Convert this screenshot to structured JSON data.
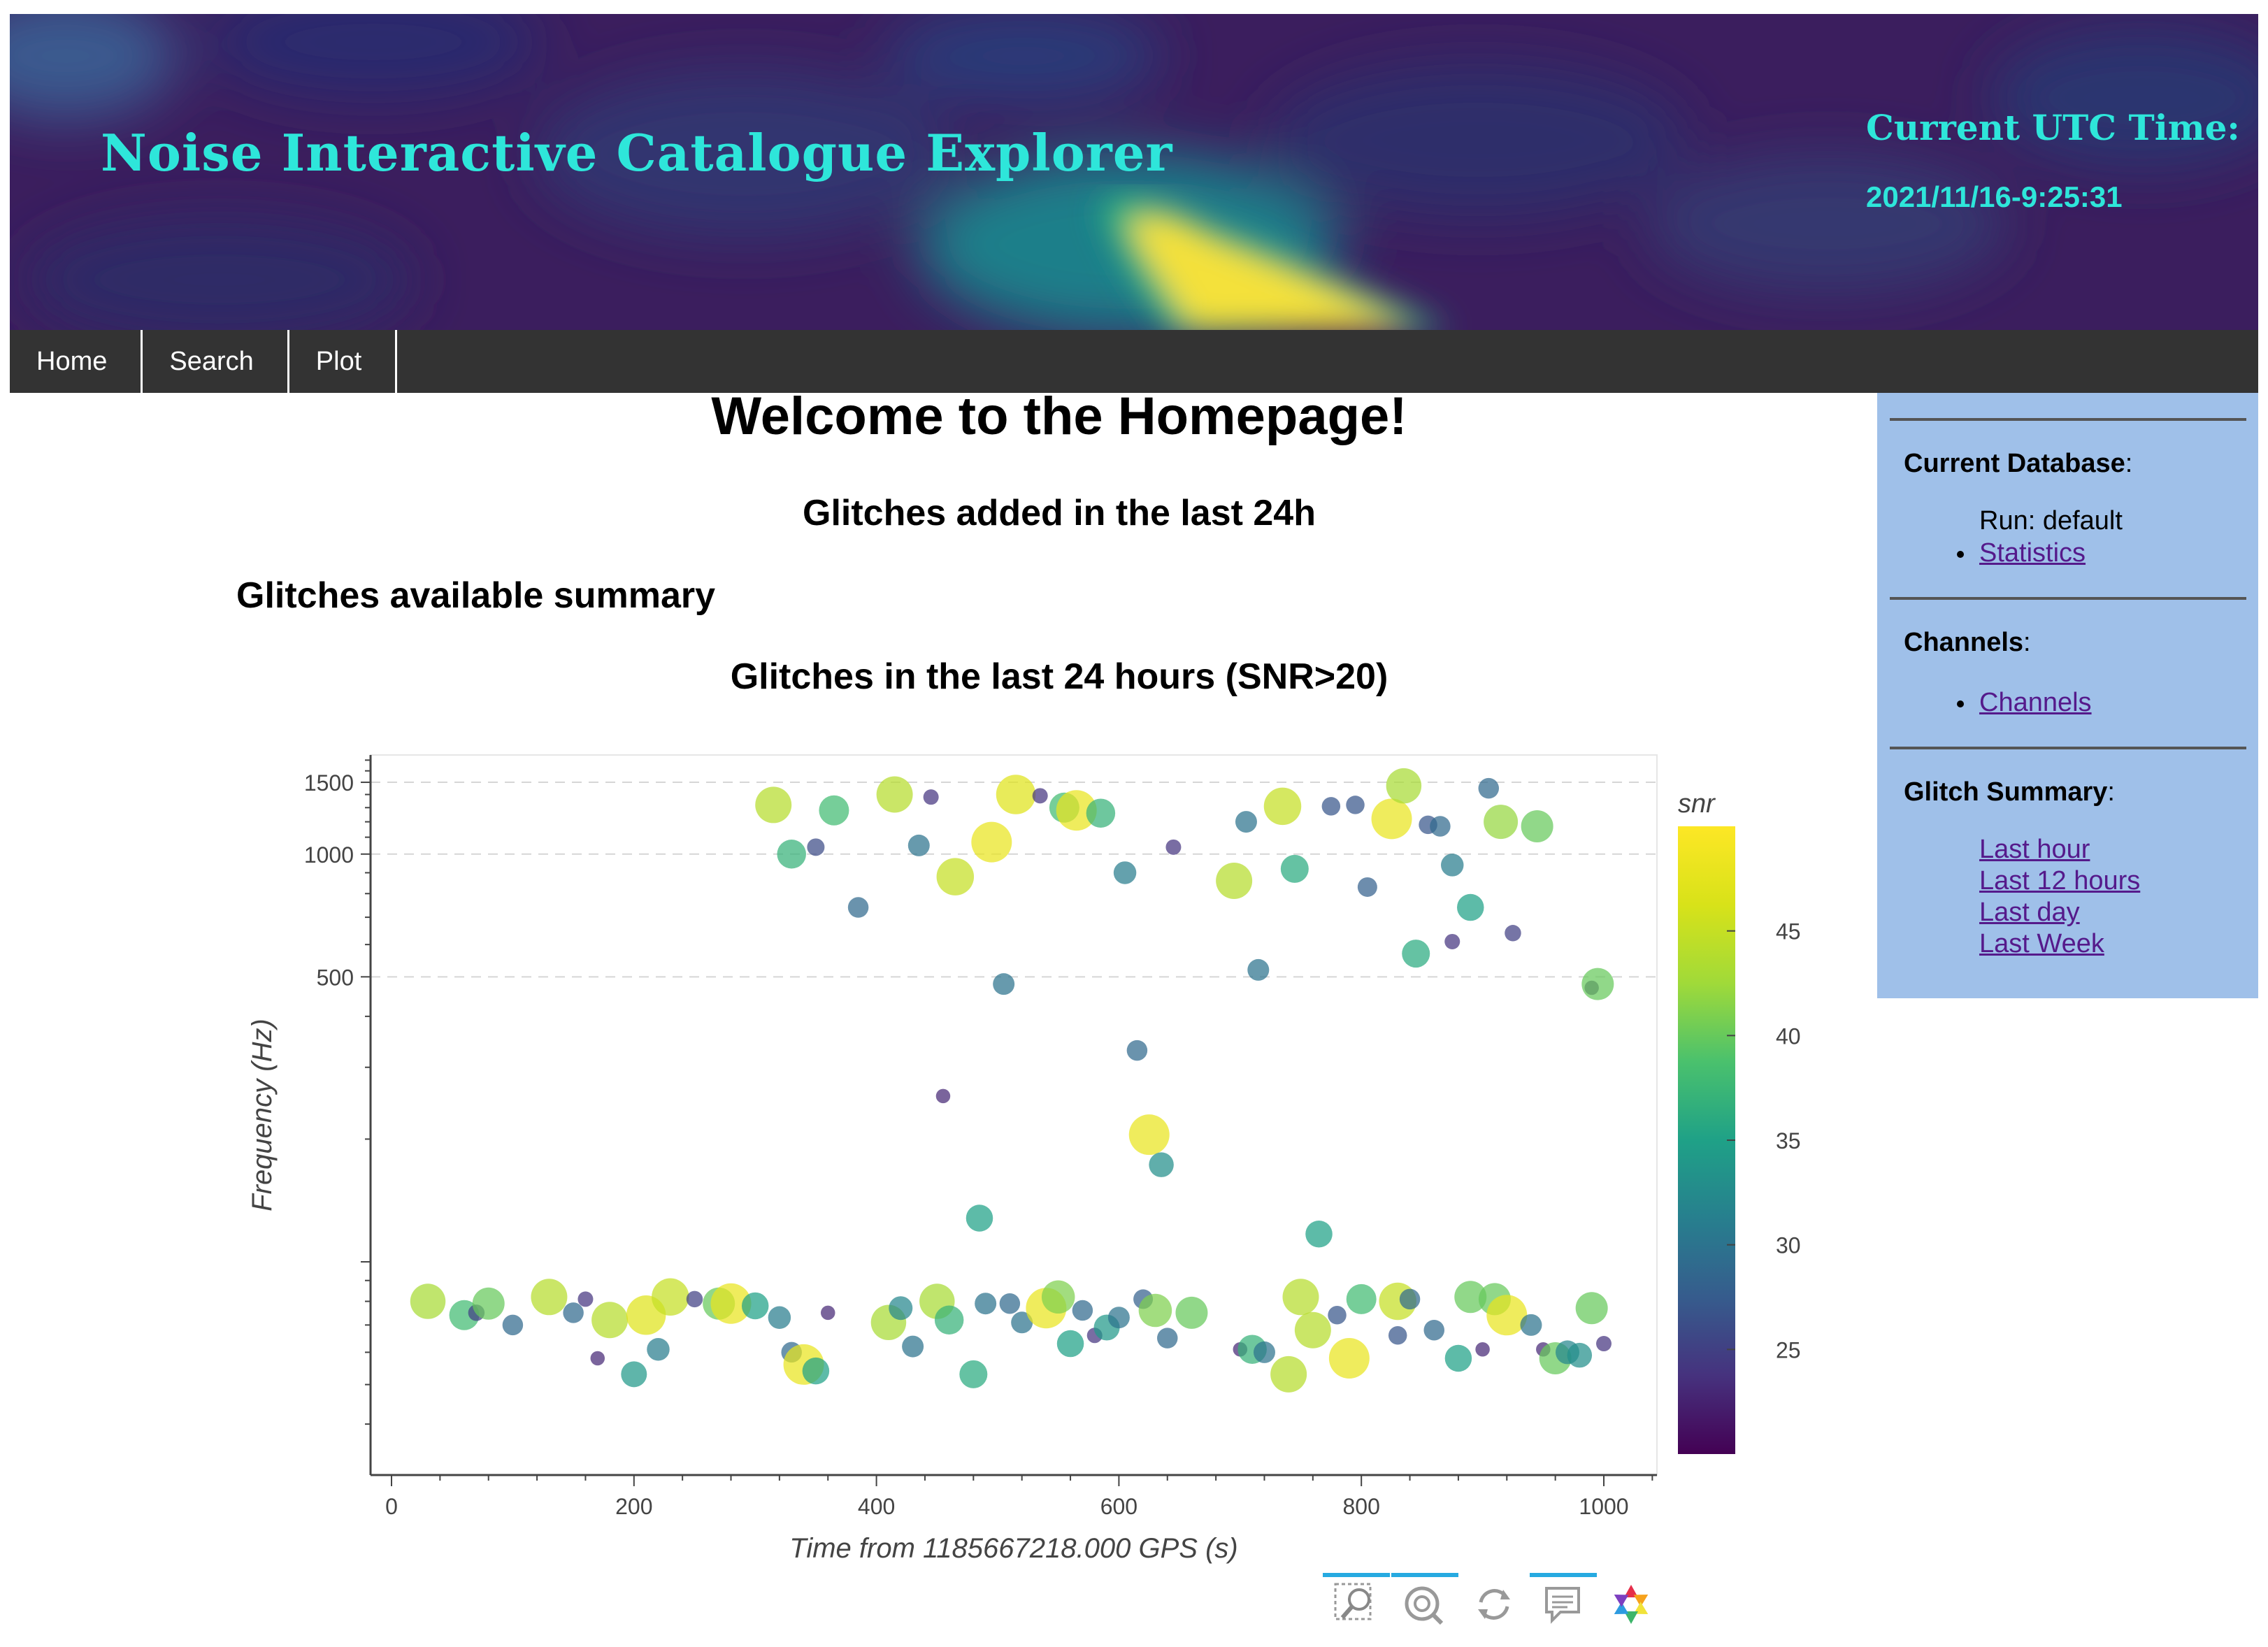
{
  "header": {
    "title": "Noise Interactive Catalogue Explorer",
    "utc_label": "Current UTC Time:",
    "utc_value": "2021/11/16-9:25:31"
  },
  "nav": {
    "items": [
      {
        "label": "Home"
      },
      {
        "label": "Search"
      },
      {
        "label": "Plot"
      }
    ]
  },
  "main": {
    "heading": "Welcome to the Homepage!",
    "subheading": "Glitches added in the last 24h",
    "summary_heading": "Glitches available summary"
  },
  "sidebar": {
    "database": {
      "title": "Current Database",
      "run_text": "Run: default",
      "link": "Statistics"
    },
    "channels": {
      "title": "Channels",
      "link": "Channels"
    },
    "glitch_summary": {
      "title": "Glitch Summary",
      "links": [
        "Last hour",
        "Last 12 hours",
        "Last day",
        "Last Week"
      ]
    }
  },
  "chart_data": {
    "type": "scatter",
    "title": "Glitches in the last 24 hours (SNR>20)",
    "xlabel": "Time from 1185667218.000 GPS (s)",
    "ylabel": "Frequency (Hz)",
    "xlim": [
      -20,
      1045
    ],
    "ylim": [
      30,
      1750
    ],
    "y_scale": "log",
    "x_ticks": [
      0,
      200,
      400,
      600,
      800,
      1000
    ],
    "y_ticks": [
      500,
      1000,
      1500
    ],
    "grid": "dashed horizontal lines at 500, 1000, 1500",
    "colorbar": {
      "title": "snr",
      "ticks": [
        25,
        30,
        35,
        40,
        45
      ],
      "range": [
        20,
        50
      ],
      "colormap": "viridis"
    },
    "points": [
      {
        "x": 315,
        "y": 1320,
        "snr": 44
      },
      {
        "x": 330,
        "y": 1000,
        "snr": 37
      },
      {
        "x": 350,
        "y": 1040,
        "snr": 26
      },
      {
        "x": 365,
        "y": 1280,
        "snr": 38
      },
      {
        "x": 385,
        "y": 740,
        "snr": 29
      },
      {
        "x": 415,
        "y": 1400,
        "snr": 44
      },
      {
        "x": 445,
        "y": 1380,
        "snr": 24
      },
      {
        "x": 435,
        "y": 1050,
        "snr": 30
      },
      {
        "x": 465,
        "y": 880,
        "snr": 45
      },
      {
        "x": 495,
        "y": 1070,
        "snr": 48
      },
      {
        "x": 515,
        "y": 1400,
        "snr": 47
      },
      {
        "x": 535,
        "y": 1390,
        "snr": 24
      },
      {
        "x": 555,
        "y": 1300,
        "snr": 38
      },
      {
        "x": 565,
        "y": 1280,
        "snr": 48
      },
      {
        "x": 585,
        "y": 1260,
        "snr": 37
      },
      {
        "x": 605,
        "y": 900,
        "snr": 31
      },
      {
        "x": 645,
        "y": 1040,
        "snr": 24
      },
      {
        "x": 695,
        "y": 860,
        "snr": 44
      },
      {
        "x": 705,
        "y": 1200,
        "snr": 30
      },
      {
        "x": 735,
        "y": 1310,
        "snr": 45
      },
      {
        "x": 745,
        "y": 920,
        "snr": 36
      },
      {
        "x": 775,
        "y": 1310,
        "snr": 27
      },
      {
        "x": 795,
        "y": 1320,
        "snr": 27
      },
      {
        "x": 825,
        "y": 1220,
        "snr": 48
      },
      {
        "x": 835,
        "y": 1470,
        "snr": 43
      },
      {
        "x": 855,
        "y": 1180,
        "snr": 27
      },
      {
        "x": 865,
        "y": 1170,
        "snr": 29
      },
      {
        "x": 905,
        "y": 1450,
        "snr": 29
      },
      {
        "x": 915,
        "y": 1200,
        "snr": 42
      },
      {
        "x": 945,
        "y": 1170,
        "snr": 40
      },
      {
        "x": 875,
        "y": 940,
        "snr": 31
      },
      {
        "x": 805,
        "y": 830,
        "snr": 28
      },
      {
        "x": 890,
        "y": 740,
        "snr": 35
      },
      {
        "x": 845,
        "y": 570,
        "snr": 36
      },
      {
        "x": 875,
        "y": 610,
        "snr": 24
      },
      {
        "x": 925,
        "y": 640,
        "snr": 25
      },
      {
        "x": 715,
        "y": 520,
        "snr": 30
      },
      {
        "x": 505,
        "y": 480,
        "snr": 30
      },
      {
        "x": 990,
        "y": 470,
        "snr": 23
      },
      {
        "x": 995,
        "y": 480,
        "snr": 40
      },
      {
        "x": 615,
        "y": 330,
        "snr": 29
      },
      {
        "x": 455,
        "y": 255,
        "snr": 23
      },
      {
        "x": 625,
        "y": 205,
        "snr": 48
      },
      {
        "x": 635,
        "y": 173,
        "snr": 33
      },
      {
        "x": 485,
        "y": 128,
        "snr": 35
      },
      {
        "x": 765,
        "y": 117,
        "snr": 35
      },
      {
        "x": 30,
        "y": 80,
        "snr": 43
      },
      {
        "x": 60,
        "y": 74,
        "snr": 38
      },
      {
        "x": 70,
        "y": 75,
        "snr": 25
      },
      {
        "x": 80,
        "y": 79,
        "snr": 40
      },
      {
        "x": 100,
        "y": 70,
        "snr": 29
      },
      {
        "x": 130,
        "y": 82,
        "snr": 44
      },
      {
        "x": 150,
        "y": 75,
        "snr": 29
      },
      {
        "x": 160,
        "y": 81,
        "snr": 24
      },
      {
        "x": 180,
        "y": 72,
        "snr": 44
      },
      {
        "x": 170,
        "y": 58,
        "snr": 23
      },
      {
        "x": 200,
        "y": 53,
        "snr": 34
      },
      {
        "x": 210,
        "y": 74,
        "snr": 47
      },
      {
        "x": 220,
        "y": 61,
        "snr": 31
      },
      {
        "x": 230,
        "y": 82,
        "snr": 45
      },
      {
        "x": 250,
        "y": 81,
        "snr": 25
      },
      {
        "x": 270,
        "y": 79,
        "snr": 40
      },
      {
        "x": 280,
        "y": 79,
        "snr": 48
      },
      {
        "x": 300,
        "y": 78,
        "snr": 35
      },
      {
        "x": 320,
        "y": 73,
        "snr": 31
      },
      {
        "x": 330,
        "y": 60,
        "snr": 29
      },
      {
        "x": 340,
        "y": 56,
        "snr": 48
      },
      {
        "x": 350,
        "y": 54,
        "snr": 35
      },
      {
        "x": 360,
        "y": 75,
        "snr": 23
      },
      {
        "x": 410,
        "y": 71,
        "snr": 43
      },
      {
        "x": 420,
        "y": 77,
        "snr": 32
      },
      {
        "x": 430,
        "y": 62,
        "snr": 30
      },
      {
        "x": 450,
        "y": 80,
        "snr": 43
      },
      {
        "x": 460,
        "y": 72,
        "snr": 37
      },
      {
        "x": 480,
        "y": 53,
        "snr": 36
      },
      {
        "x": 490,
        "y": 79,
        "snr": 30
      },
      {
        "x": 510,
        "y": 79,
        "snr": 29
      },
      {
        "x": 520,
        "y": 71,
        "snr": 30
      },
      {
        "x": 540,
        "y": 77,
        "snr": 48
      },
      {
        "x": 550,
        "y": 82,
        "snr": 41
      },
      {
        "x": 560,
        "y": 63,
        "snr": 35
      },
      {
        "x": 570,
        "y": 76,
        "snr": 29
      },
      {
        "x": 580,
        "y": 66,
        "snr": 24
      },
      {
        "x": 590,
        "y": 69,
        "snr": 34
      },
      {
        "x": 600,
        "y": 73,
        "snr": 30
      },
      {
        "x": 620,
        "y": 81,
        "snr": 28
      },
      {
        "x": 630,
        "y": 76,
        "snr": 41
      },
      {
        "x": 640,
        "y": 65,
        "snr": 29
      },
      {
        "x": 660,
        "y": 75,
        "snr": 40
      },
      {
        "x": 700,
        "y": 61,
        "snr": 23
      },
      {
        "x": 710,
        "y": 61,
        "snr": 37
      },
      {
        "x": 720,
        "y": 60,
        "snr": 30
      },
      {
        "x": 740,
        "y": 53,
        "snr": 44
      },
      {
        "x": 750,
        "y": 82,
        "snr": 44
      },
      {
        "x": 760,
        "y": 68,
        "snr": 44
      },
      {
        "x": 780,
        "y": 74,
        "snr": 27
      },
      {
        "x": 790,
        "y": 58,
        "snr": 48
      },
      {
        "x": 800,
        "y": 81,
        "snr": 38
      },
      {
        "x": 830,
        "y": 80,
        "snr": 45
      },
      {
        "x": 840,
        "y": 81,
        "snr": 29
      },
      {
        "x": 830,
        "y": 66,
        "snr": 27
      },
      {
        "x": 860,
        "y": 68,
        "snr": 29
      },
      {
        "x": 880,
        "y": 58,
        "snr": 35
      },
      {
        "x": 890,
        "y": 82,
        "snr": 40
      },
      {
        "x": 900,
        "y": 61,
        "snr": 23
      },
      {
        "x": 910,
        "y": 81,
        "snr": 40
      },
      {
        "x": 920,
        "y": 74,
        "snr": 48
      },
      {
        "x": 940,
        "y": 70,
        "snr": 30
      },
      {
        "x": 950,
        "y": 61,
        "snr": 23
      },
      {
        "x": 960,
        "y": 58,
        "snr": 40
      },
      {
        "x": 970,
        "y": 60,
        "snr": 32
      },
      {
        "x": 980,
        "y": 59,
        "snr": 33
      },
      {
        "x": 990,
        "y": 77,
        "snr": 40
      },
      {
        "x": 1000,
        "y": 63,
        "snr": 24
      }
    ]
  },
  "toolbar": {
    "tools": [
      "box-zoom-icon",
      "wheel-zoom-icon",
      "reset-icon",
      "hover-icon",
      "bokeh-logo-icon"
    ]
  },
  "colors": {
    "title_cyan": "#2ee6da",
    "navbar": "#333333",
    "sidebar": "#9fc0e9",
    "link": "#551a8b",
    "toolbar_active": "#26aae1"
  }
}
